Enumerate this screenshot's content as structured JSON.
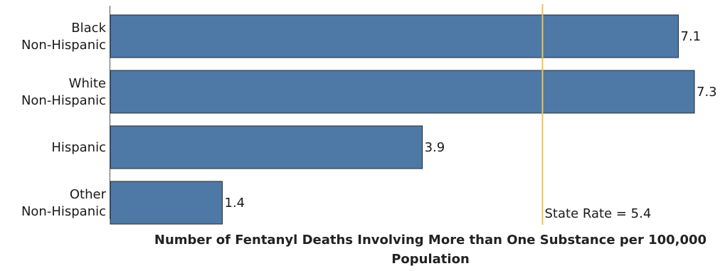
{
  "chart_data": {
    "type": "bar",
    "orientation": "horizontal",
    "title": "",
    "xlabel": "Number of Fentanyl Deaths Involving More than One Substance per 100,000 Population",
    "ylabel": "",
    "categories": [
      [
        "Black",
        "Non-Hispanic"
      ],
      [
        "White",
        "Non-Hispanic"
      ],
      [
        "Hispanic"
      ],
      [
        "Other",
        "Non-Hispanic"
      ]
    ],
    "values": [
      7.1,
      7.3,
      3.9,
      1.4
    ],
    "value_labels": [
      "7.1",
      "7.3",
      "3.9",
      "1.4"
    ],
    "xlim": [
      0,
      7.3
    ],
    "grid": false,
    "reference_line": {
      "value": 5.4,
      "label": "State Rate = 5.4"
    },
    "colors": {
      "bar": "#4e79a7",
      "bar_edge": "#1f2a36",
      "reference_line": "#f1c152"
    }
  }
}
